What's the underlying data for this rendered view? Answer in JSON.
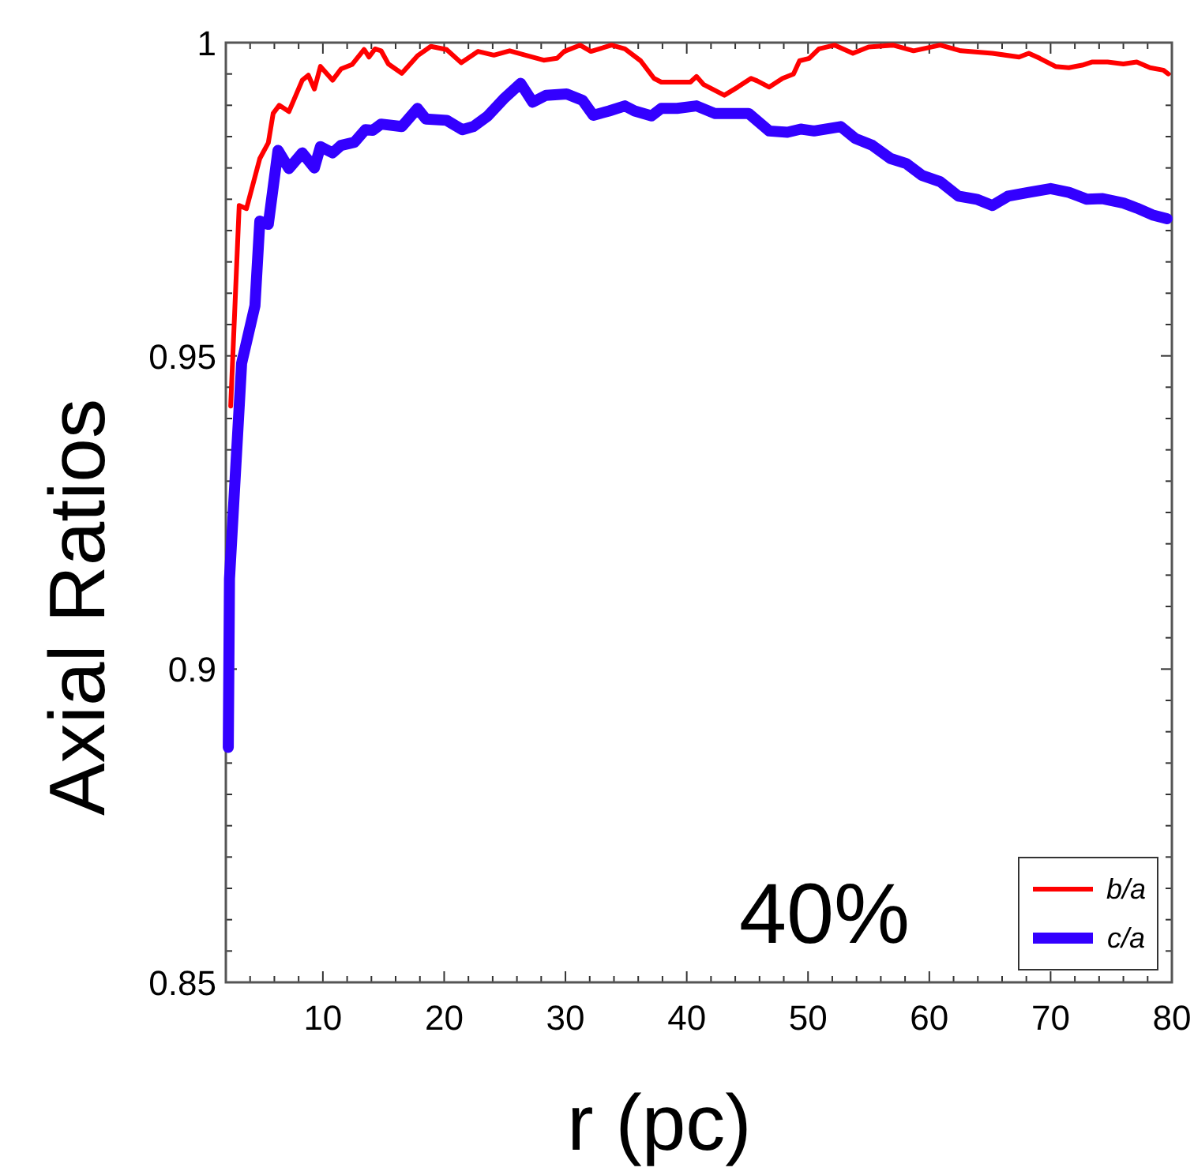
{
  "chart_data": {
    "type": "line",
    "xlabel": "r (pc)",
    "ylabel": "Axial Ratios",
    "annotations": [
      "40%"
    ],
    "xlim": [
      2,
      80
    ],
    "ylim": [
      0.85,
      1
    ],
    "xticks": [
      10,
      20,
      30,
      40,
      50,
      60,
      70,
      80,
      {
        "value": 4,
        "label": null
      },
      {
        "value": 6,
        "label": null
      },
      {
        "value": 8,
        "label": null
      },
      {
        "value": 12,
        "label": null
      },
      {
        "value": 14,
        "label": null
      },
      {
        "value": 16,
        "label": null
      },
      {
        "value": 18,
        "label": null
      },
      {
        "value": 22,
        "label": null
      },
      {
        "value": 24,
        "label": null
      },
      {
        "value": 26,
        "label": null
      },
      {
        "value": 28,
        "label": null
      },
      {
        "value": 32,
        "label": null
      },
      {
        "value": 34,
        "label": null
      },
      {
        "value": 36,
        "label": null
      },
      {
        "value": 38,
        "label": null
      },
      {
        "value": 42,
        "label": null
      },
      {
        "value": 44,
        "label": null
      },
      {
        "value": 46,
        "label": null
      },
      {
        "value": 48,
        "label": null
      },
      {
        "value": 52,
        "label": null
      },
      {
        "value": 54,
        "label": null
      },
      {
        "value": 56,
        "label": null
      },
      {
        "value": 58,
        "label": null
      },
      {
        "value": 62,
        "label": null
      },
      {
        "value": 64,
        "label": null
      },
      {
        "value": 66,
        "label": null
      },
      {
        "value": 68,
        "label": null
      },
      {
        "value": 72,
        "label": null
      },
      {
        "value": 74,
        "label": null
      },
      {
        "value": 76,
        "label": null
      },
      {
        "value": 78,
        "label": null
      }
    ],
    "yticks": [
      {
        "value": 0.85,
        "label": "0.85"
      },
      {
        "value": 0.9,
        "label": "0.9"
      },
      {
        "value": 0.95,
        "label": "0.95"
      },
      1,
      {
        "value": 0.855,
        "label": null
      },
      {
        "value": 0.86,
        "label": null
      },
      {
        "value": 0.865,
        "label": null
      },
      {
        "value": 0.87,
        "label": null
      },
      {
        "value": 0.875,
        "label": null
      },
      {
        "value": 0.88,
        "label": null
      },
      {
        "value": 0.885,
        "label": null
      },
      {
        "value": 0.89,
        "label": null
      },
      {
        "value": 0.895,
        "label": null
      },
      {
        "value": 0.905,
        "label": null
      },
      {
        "value": 0.91,
        "label": null
      },
      {
        "value": 0.915,
        "label": null
      },
      {
        "value": 0.92,
        "label": null
      },
      {
        "value": 0.925,
        "label": null
      },
      {
        "value": 0.93,
        "label": null
      },
      {
        "value": 0.935,
        "label": null
      },
      {
        "value": 0.94,
        "label": null
      },
      {
        "value": 0.945,
        "label": null
      },
      {
        "value": 0.955,
        "label": null
      },
      {
        "value": 0.96,
        "label": null
      },
      {
        "value": 0.965,
        "label": null
      },
      {
        "value": 0.97,
        "label": null
      },
      {
        "value": 0.975,
        "label": null
      },
      {
        "value": 0.98,
        "label": null
      },
      {
        "value": 0.985,
        "label": null
      },
      {
        "value": 0.99,
        "label": null
      },
      {
        "value": 0.995,
        "label": null
      }
    ],
    "grid": false,
    "legend": "bottom right",
    "marker": "none",
    "line_style": "solid",
    "series": [
      {
        "name": "b/a",
        "color": "#ff0000",
        "x": [
          2.4,
          3.1,
          3.7,
          4.8,
          5.5,
          5.9,
          6.4,
          7.2,
          8.3,
          8.8,
          9.3,
          9.8,
          10.8,
          11.5,
          12.4,
          13.4,
          13.8,
          14.3,
          14.8,
          15.4,
          16.5,
          17.8,
          18.9,
          20.2,
          21.4,
          22.8,
          24.1,
          25.4,
          26.7,
          28.2,
          29.3,
          29.9,
          31.2,
          32.1,
          33.8,
          34.9,
          36.2,
          37.3,
          37.9,
          39.2,
          40.3,
          40.8,
          41.4,
          43.1,
          44.2,
          45.3,
          45.8,
          46.8,
          47.9,
          48.8,
          49.3,
          50.1,
          50.9,
          52.2,
          53.7,
          55,
          57,
          58.7,
          60.9,
          62.6,
          65.2,
          67.4,
          68.2,
          69.1,
          70.4,
          71.5,
          72.6,
          73.4,
          74.7,
          76,
          77.1,
          78.2,
          79.3,
          79.7
        ],
        "values": [
          0.942,
          0.974,
          0.9735,
          0.9815,
          0.984,
          0.9887,
          0.99,
          0.989,
          0.994,
          0.9948,
          0.9926,
          0.9962,
          0.994,
          0.9958,
          0.9965,
          0.9989,
          0.9977,
          0.999,
          0.9987,
          0.9966,
          0.9951,
          0.9979,
          0.9994,
          0.9989,
          0.9968,
          0.9986,
          0.998,
          0.9987,
          0.998,
          0.9972,
          0.9975,
          0.9986,
          0.9996,
          0.9986,
          0.9996,
          0.999,
          0.9971,
          0.9943,
          0.9937,
          0.9937,
          0.9937,
          0.9946,
          0.9933,
          0.9916,
          0.9929,
          0.9943,
          0.9939,
          0.9929,
          0.9943,
          0.995,
          0.9971,
          0.9975,
          0.999,
          0.9996,
          0.9983,
          0.9993,
          0.9996,
          0.9987,
          0.9996,
          0.9987,
          0.9983,
          0.9977,
          0.9983,
          0.9975,
          0.9962,
          0.996,
          0.9964,
          0.9969,
          0.9969,
          0.9966,
          0.9969,
          0.996,
          0.9956,
          0.995
        ]
      },
      {
        "name": "c/a",
        "color": "#3300ff",
        "x": [
          2.2,
          2.3,
          3.3,
          4.4,
          4.8,
          5.5,
          6.3,
          7.2,
          8.3,
          9.3,
          9.8,
          10.8,
          11.5,
          12.6,
          13.5,
          14.1,
          14.8,
          16.5,
          17.8,
          18.5,
          20.2,
          21.5,
          22.4,
          23.6,
          25,
          26.3,
          27.3,
          28.4,
          30.1,
          31.4,
          32.3,
          33.6,
          34.9,
          35.7,
          37.1,
          37.9,
          39.2,
          40.8,
          42.3,
          45.1,
          46.8,
          48.3,
          49.4,
          50.5,
          52.7,
          53.9,
          55.3,
          56.8,
          58.1,
          59.4,
          60.9,
          62.4,
          63.9,
          65.2,
          66.5,
          68.2,
          70,
          71.5,
          73,
          74.3,
          76,
          77.1,
          78.4,
          79.6
        ],
        "values": [
          0.8875,
          0.9144,
          0.9488,
          0.958,
          0.9715,
          0.971,
          0.9828,
          0.9799,
          0.9824,
          0.98,
          0.9834,
          0.9824,
          0.9836,
          0.9841,
          0.9861,
          0.986,
          0.987,
          0.9866,
          0.9895,
          0.9878,
          0.9876,
          0.9861,
          0.9866,
          0.9883,
          0.9912,
          0.9935,
          0.9905,
          0.9916,
          0.9918,
          0.9908,
          0.9884,
          0.9891,
          0.9899,
          0.9891,
          0.9883,
          0.9895,
          0.9895,
          0.9899,
          0.9887,
          0.9887,
          0.9859,
          0.9857,
          0.9862,
          0.9859,
          0.9866,
          0.9847,
          0.9836,
          0.9815,
          0.9807,
          0.9788,
          0.9778,
          0.9755,
          0.975,
          0.974,
          0.9755,
          0.9761,
          0.9767,
          0.9761,
          0.975,
          0.9751,
          0.9744,
          0.9736,
          0.9725,
          0.9719
        ]
      }
    ]
  }
}
